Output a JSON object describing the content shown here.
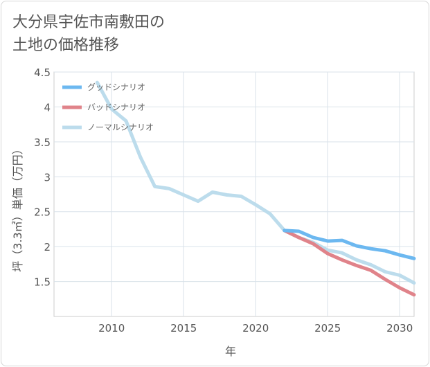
{
  "title_lines": [
    "大分県宇佐市南敷田の",
    "土地の価格推移"
  ],
  "chart_data": {
    "type": "line",
    "xlabel": "年",
    "ylabel": "坪（3.3㎡）単価（万円）",
    "xlim": [
      2006,
      2031
    ],
    "ylim": [
      1.0,
      4.5
    ],
    "xticks": [
      2010,
      2015,
      2020,
      2025,
      2030
    ],
    "yticks": [
      1.5,
      2,
      2.5,
      3,
      3.5,
      4,
      4.5
    ],
    "ytick_labels": [
      "1.5",
      "2",
      "2.5",
      "3",
      "3.5",
      "4",
      "4.5"
    ],
    "grid": true,
    "legend_position": "top-left",
    "series": [
      {
        "name": "グッドシナリオ",
        "color": "#6cb8f0",
        "x": [
          2022,
          2023,
          2024,
          2025,
          2026,
          2027,
          2028,
          2029,
          2030,
          2031
        ],
        "y": [
          2.23,
          2.22,
          2.13,
          2.08,
          2.09,
          2.01,
          1.97,
          1.94,
          1.88,
          1.83
        ]
      },
      {
        "name": "バッドシナリオ",
        "color": "#e0838a",
        "x": [
          2022,
          2023,
          2024,
          2025,
          2026,
          2027,
          2028,
          2029,
          2030,
          2031
        ],
        "y": [
          2.23,
          2.13,
          2.04,
          1.9,
          1.81,
          1.73,
          1.66,
          1.53,
          1.41,
          1.31
        ]
      },
      {
        "name": "ノーマルシナリオ",
        "color": "#bcdcec",
        "x": [
          2009,
          2010,
          2011,
          2012,
          2013,
          2014,
          2015,
          2016,
          2017,
          2018,
          2019,
          2020,
          2021,
          2022,
          2023,
          2024,
          2025,
          2026,
          2027,
          2028,
          2029,
          2030,
          2031
        ],
        "y": [
          4.35,
          3.97,
          3.8,
          3.28,
          2.86,
          2.83,
          2.74,
          2.65,
          2.78,
          2.74,
          2.72,
          2.6,
          2.47,
          2.23,
          2.13,
          2.06,
          1.95,
          1.91,
          1.81,
          1.74,
          1.64,
          1.59,
          1.48
        ]
      }
    ]
  }
}
